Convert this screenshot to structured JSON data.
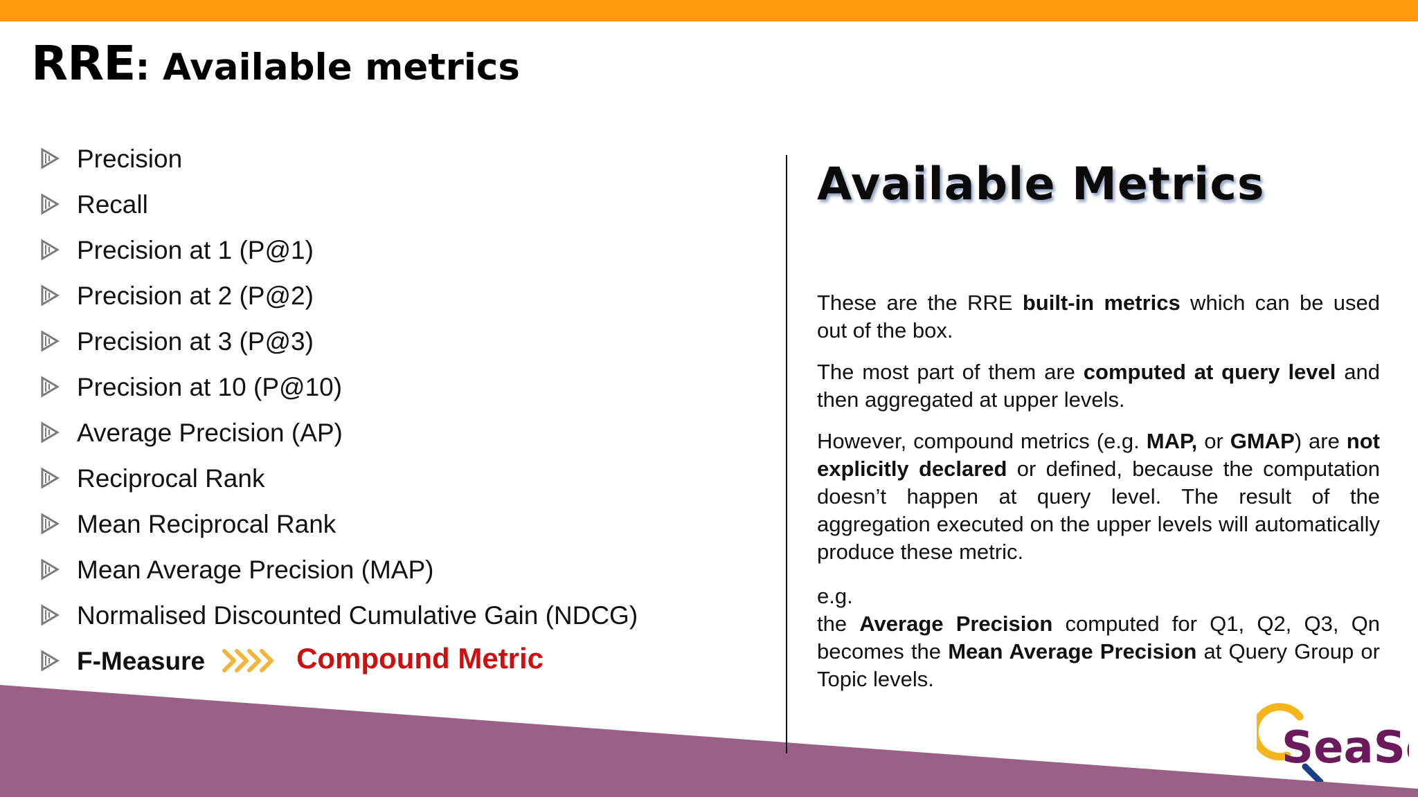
{
  "slide": {
    "title_main": "RRE",
    "title_rest": ": Available metrics"
  },
  "metrics": [
    "Precision",
    "Recall",
    "Precision at 1 (P@1)",
    "Precision at 2 (P@2)",
    "Precision at 3 (P@3)",
    "Precision at 10 (P@10)",
    "Average Precision (AP)",
    "Reciprocal Rank",
    "Mean Reciprocal Rank",
    "Mean Average Precision (MAP)",
    "Normalised Discounted Cumulative Gain (NDCG)",
    "F-Measure"
  ],
  "compound_label": "Compound Metric",
  "panel": {
    "heading": "Available Metrics",
    "p1": {
      "t1": "These are the RRE ",
      "b1": "built-in metrics",
      "t2": " which can be used out of the box."
    },
    "p2": {
      "t1": "The most part of them are ",
      "b1": "computed at query level",
      "t2": " and then aggregated at upper levels."
    },
    "p3": {
      "t1": "However, compound metrics (e.g. ",
      "b1": "MAP,",
      "t2": " or ",
      "b2": "GMAP",
      "t3": ") are ",
      "b3": "not explicitly declared",
      "t4": " or defined, because the computation doesn’t happen at query level. The result of the aggregation executed on the upper levels will automatically produce these metric."
    },
    "p4": {
      "eg": "e.g.",
      "t1": "the ",
      "b1": "Average Precision",
      "t2": " computed for Q1, Q2, Q3, Qn becomes the ",
      "b2": "Mean Average Precision",
      "t3": " at Query Group or Topic levels."
    }
  },
  "logo": {
    "text": "SeaSe"
  },
  "colors": {
    "top_bar": "#ff9a0d",
    "bottom_band": "#9a6186",
    "compound": "#cc1010",
    "bullet": "#7a7a7a",
    "chevron": "#f0b53a"
  }
}
